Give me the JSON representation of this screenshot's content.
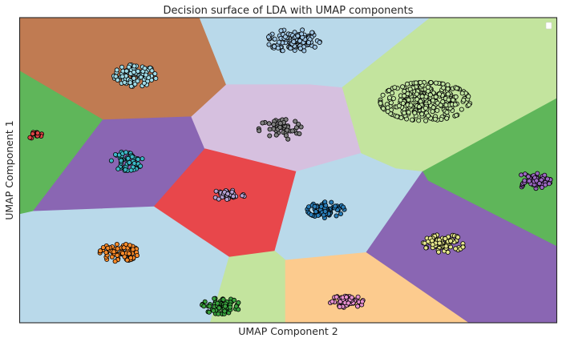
{
  "chart_data": {
    "type": "scatter",
    "title": "Decision surface of LDA with UMAP components",
    "xlabel": "UMAP Component 2",
    "ylabel": "UMAP Component 1",
    "xticks": "hidden",
    "yticks": "hidden",
    "grid": false,
    "legend": {
      "placement": "top-right",
      "entries": []
    },
    "xlim": [
      0,
      100
    ],
    "ylim": [
      0,
      100
    ],
    "regions": [
      {
        "color": "#c07b52",
        "polygon": [
          [
            0,
            100
          ],
          [
            33.5,
            100
          ],
          [
            38.5,
            78
          ],
          [
            32,
            67.5
          ],
          [
            15.5,
            66.5
          ],
          [
            0,
            82.5
          ]
        ]
      },
      {
        "color": "#b9d9ea",
        "polygon": [
          [
            33.5,
            100
          ],
          [
            76.5,
            100
          ],
          [
            60,
            77
          ],
          [
            54,
            78
          ],
          [
            38.5,
            78
          ]
        ]
      },
      {
        "color": "#c3e49e",
        "polygon": [
          [
            76.5,
            100
          ],
          [
            100,
            100
          ],
          [
            100,
            73.5
          ],
          [
            75,
            49.5
          ],
          [
            70,
            50.5
          ],
          [
            63.5,
            55.5
          ],
          [
            60,
            77
          ]
        ]
      },
      {
        "color": "#5fb65a",
        "polygon": [
          [
            0,
            82.5
          ],
          [
            15.5,
            66.5
          ],
          [
            2.5,
            36.5
          ],
          [
            0,
            35.5
          ]
        ]
      },
      {
        "color": "#8a66b3",
        "polygon": [
          [
            15.5,
            66.5
          ],
          [
            32,
            67.5
          ],
          [
            34.5,
            57
          ],
          [
            25,
            38
          ],
          [
            2.5,
            36.5
          ]
        ]
      },
      {
        "color": "#d6c0df",
        "polygon": [
          [
            32,
            67.5
          ],
          [
            38.5,
            78
          ],
          [
            54,
            78
          ],
          [
            60,
            77
          ],
          [
            63.5,
            55.5
          ],
          [
            51.5,
            49.5
          ],
          [
            34.5,
            57
          ]
        ]
      },
      {
        "color": "#e8474b",
        "polygon": [
          [
            34.5,
            57
          ],
          [
            51.5,
            49.5
          ],
          [
            47.5,
            23.5
          ],
          [
            39,
            21.5
          ],
          [
            25,
            38
          ]
        ]
      },
      {
        "color": "#b9d9ea",
        "polygon": [
          [
            51.5,
            49.5
          ],
          [
            63.5,
            55.5
          ],
          [
            70,
            50.5
          ],
          [
            75,
            49.5
          ],
          [
            64.5,
            23
          ],
          [
            49.5,
            20.5
          ],
          [
            47.5,
            23.5
          ]
        ]
      },
      {
        "color": "#5fb65a",
        "polygon": [
          [
            100,
            73.5
          ],
          [
            100,
            25
          ],
          [
            76,
            46.5
          ],
          [
            75,
            49.5
          ]
        ]
      },
      {
        "color": "#8a66b3",
        "polygon": [
          [
            75,
            49.5
          ],
          [
            76,
            46.5
          ],
          [
            100,
            25
          ],
          [
            100,
            0
          ],
          [
            83.5,
            0
          ],
          [
            64.5,
            23
          ]
        ]
      },
      {
        "color": "#b9d9ea",
        "polygon": [
          [
            0,
            35.5
          ],
          [
            2.5,
            36.5
          ],
          [
            25,
            38
          ],
          [
            39,
            21.5
          ],
          [
            35.5,
            0
          ],
          [
            0,
            0
          ]
        ]
      },
      {
        "color": "#c3e49e",
        "polygon": [
          [
            35.5,
            0
          ],
          [
            39,
            21.5
          ],
          [
            47.5,
            23.5
          ],
          [
            49.5,
            20.5
          ],
          [
            49.5,
            0
          ]
        ]
      },
      {
        "color": "#fccb8e",
        "polygon": [
          [
            49.5,
            20.5
          ],
          [
            64.5,
            23
          ],
          [
            83.5,
            0
          ],
          [
            49.5,
            0
          ]
        ]
      }
    ],
    "series": [
      {
        "color": "#9ed9e5",
        "center": [
          21.5,
          81
        ],
        "spread": [
          3.8,
          3.4
        ],
        "n": 90
      },
      {
        "color": "#9ec5e4",
        "center": [
          51,
          92.5
        ],
        "spread": [
          4.7,
          3.5
        ],
        "n": 110
      },
      {
        "color": "#bfe3a0",
        "center": [
          75.5,
          72.5
        ],
        "spread": [
          8.0,
          6.0
        ],
        "n": 300
      },
      {
        "color": "#e04545",
        "center": [
          3,
          61.5
        ],
        "spread": [
          1.4,
          1.1
        ],
        "n": 15
      },
      {
        "color": "#3cb8c6",
        "center": [
          20,
          53
        ],
        "spread": [
          2.8,
          3.0
        ],
        "n": 50
      },
      {
        "color": "#7f7f7f",
        "center": [
          48.5,
          63.5
        ],
        "spread": [
          3.8,
          3.4
        ],
        "n": 45
      },
      {
        "color": "#b39fd0",
        "center": [
          39,
          42
        ],
        "spread": [
          2.8,
          1.9
        ],
        "n": 40
      },
      {
        "color": "#2a7db8",
        "center": [
          57,
          37
        ],
        "spread": [
          3.3,
          2.5
        ],
        "n": 70
      },
      {
        "color": "#9b67c2",
        "center": [
          95.5,
          46.5
        ],
        "spread": [
          3.2,
          2.4
        ],
        "n": 60
      },
      {
        "color": "#ff8c2a",
        "center": [
          18.5,
          23
        ],
        "spread": [
          3.4,
          2.8
        ],
        "n": 80
      },
      {
        "color": "#e4e48c",
        "center": [
          79,
          26
        ],
        "spread": [
          3.7,
          2.8
        ],
        "n": 80
      },
      {
        "color": "#39a33e",
        "center": [
          37.5,
          5.5
        ],
        "spread": [
          3.4,
          2.5
        ],
        "n": 70
      },
      {
        "color": "#e791d0",
        "center": [
          61,
          7
        ],
        "spread": [
          3.1,
          1.9
        ],
        "n": 50
      }
    ]
  }
}
